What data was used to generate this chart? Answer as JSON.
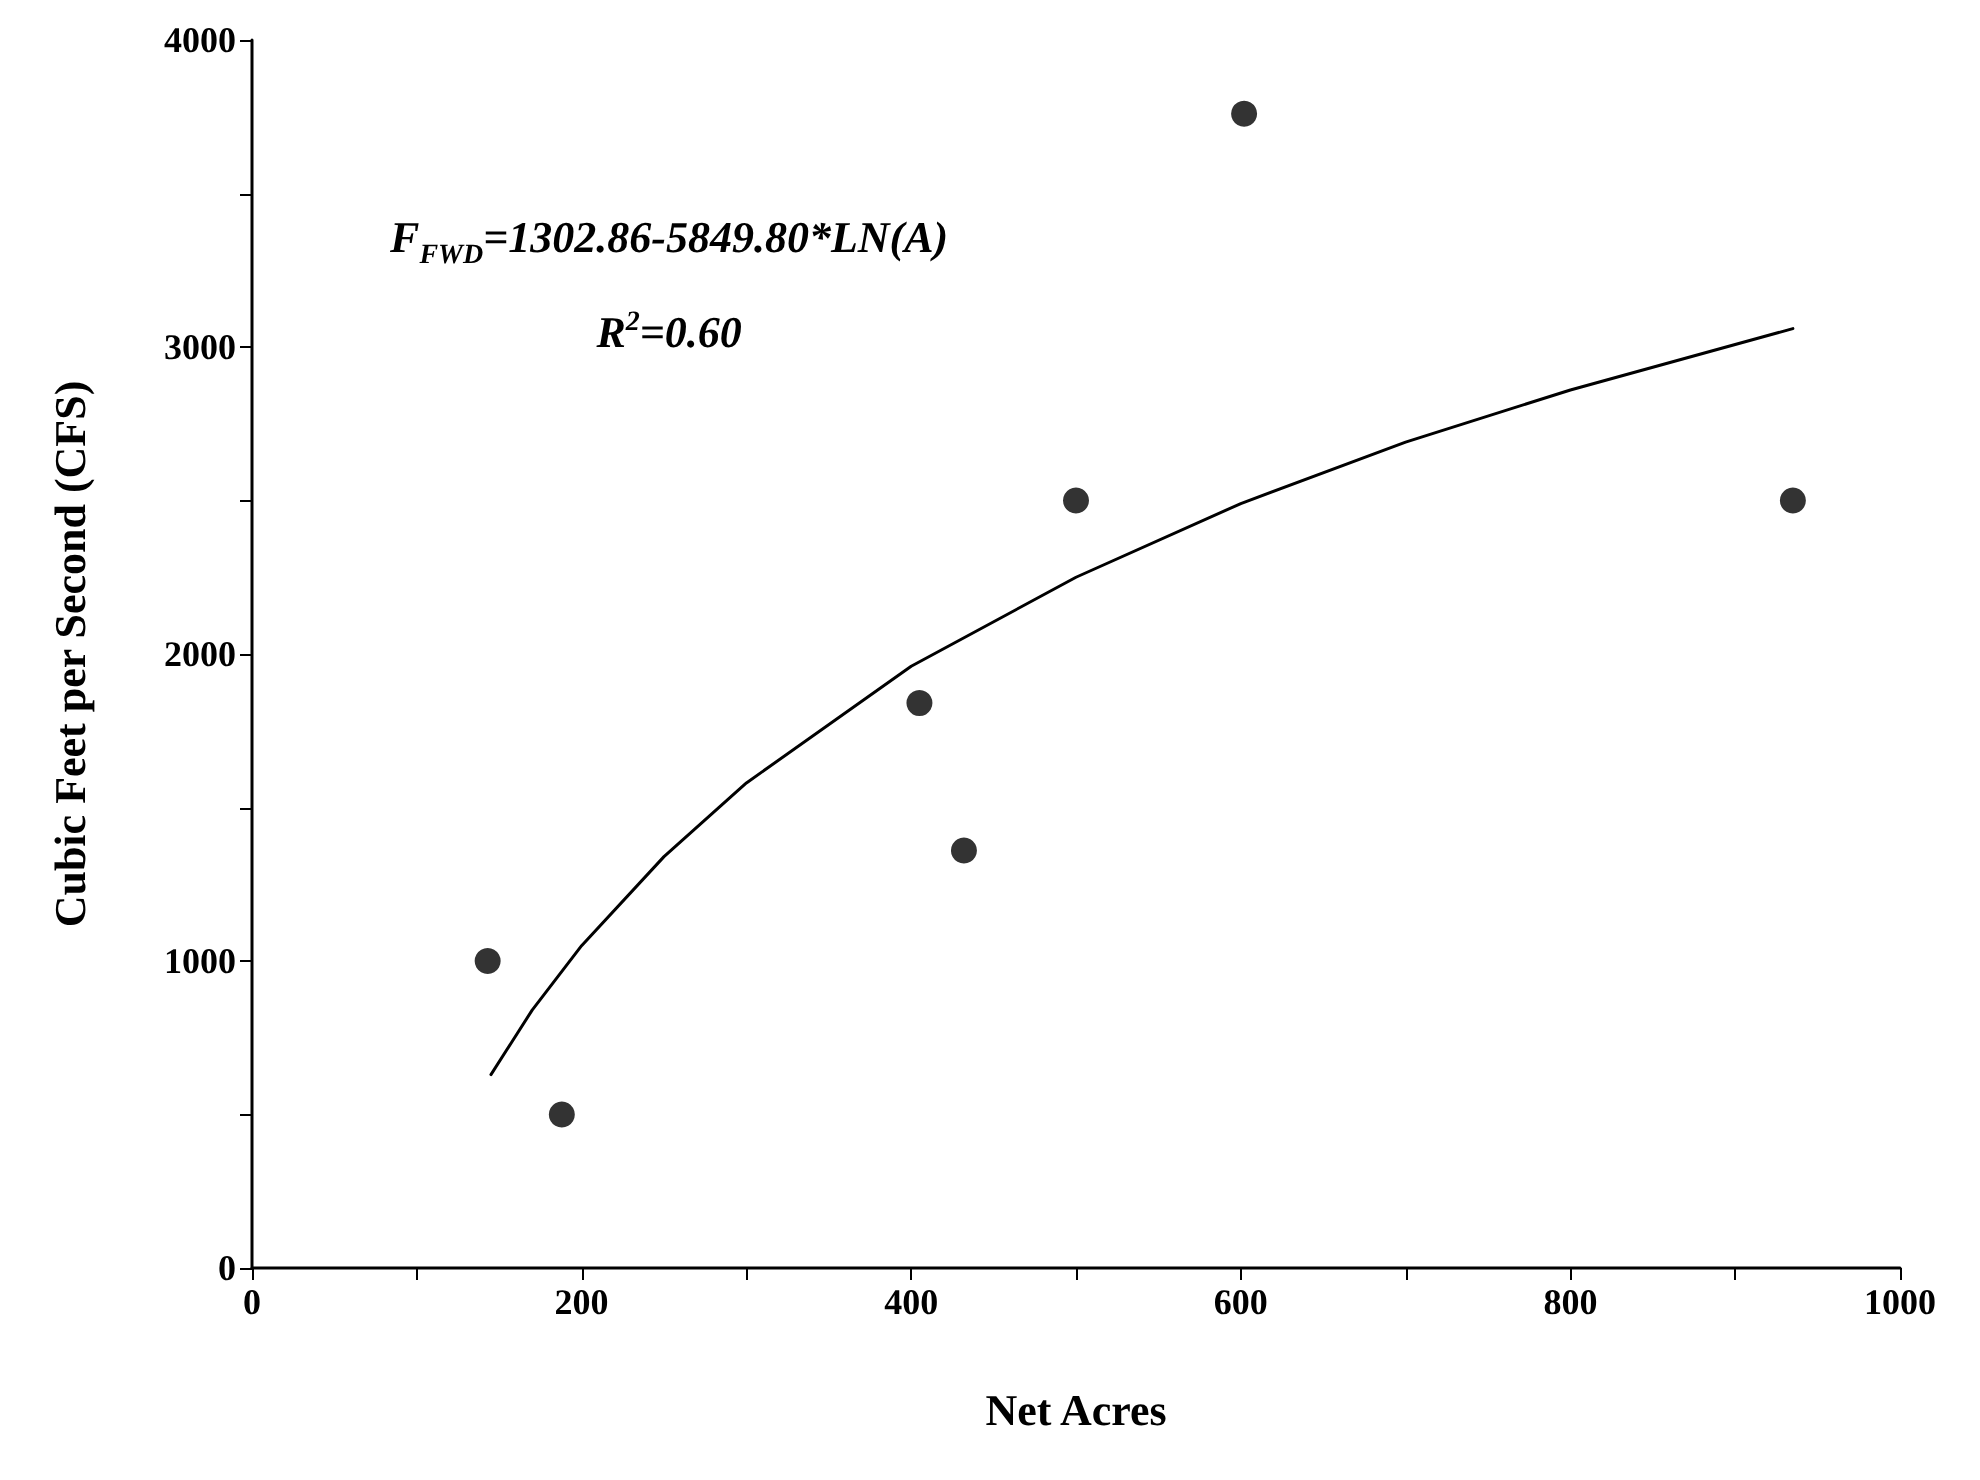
{
  "chart_data": {
    "type": "scatter",
    "xlabel": "Net Acres",
    "ylabel": "Cubic Feet per Second (CFS)",
    "annotations": [
      "F$_{FWD}$=1302.86-5849.80*LN(A)",
      "R$^{2}$=0.60"
    ],
    "series": [
      {
        "type": "scatter",
        "color": "#000000",
        "marker": "circle",
        "x": [
          143,
          188,
          405,
          432,
          500,
          602,
          935
        ],
        "values": [
          1000,
          500,
          1840,
          1360,
          2500,
          3760,
          2500
        ]
      },
      {
        "type": "line",
        "color": "#000000",
        "marker": "none",
        "x": [
          145,
          170,
          200,
          250,
          300,
          400,
          500,
          600,
          700,
          800,
          935
        ],
        "values": [
          630,
          840,
          1050,
          1340,
          1580,
          1960,
          2250,
          2490,
          2690,
          2860,
          3060
        ]
      }
    ],
    "xlim": [
      0,
      1000
    ],
    "ylim": [
      0,
      4000
    ],
    "xticks": [
      0,
      {
        "value": 100,
        "label": null
      },
      200,
      {
        "value": 300,
        "label": null
      },
      400,
      {
        "value": 500,
        "label": null
      },
      600,
      {
        "value": 700,
        "label": null
      },
      800,
      {
        "value": 900,
        "label": null
      },
      1000
    ],
    "yticks": [
      0,
      {
        "value": 500,
        "label": null
      },
      1000,
      {
        "value": 1500,
        "label": null
      },
      2000,
      {
        "value": 2500,
        "label": null
      },
      3000,
      {
        "value": 3500,
        "label": null
      },
      4000
    ],
    "grid": false
  }
}
